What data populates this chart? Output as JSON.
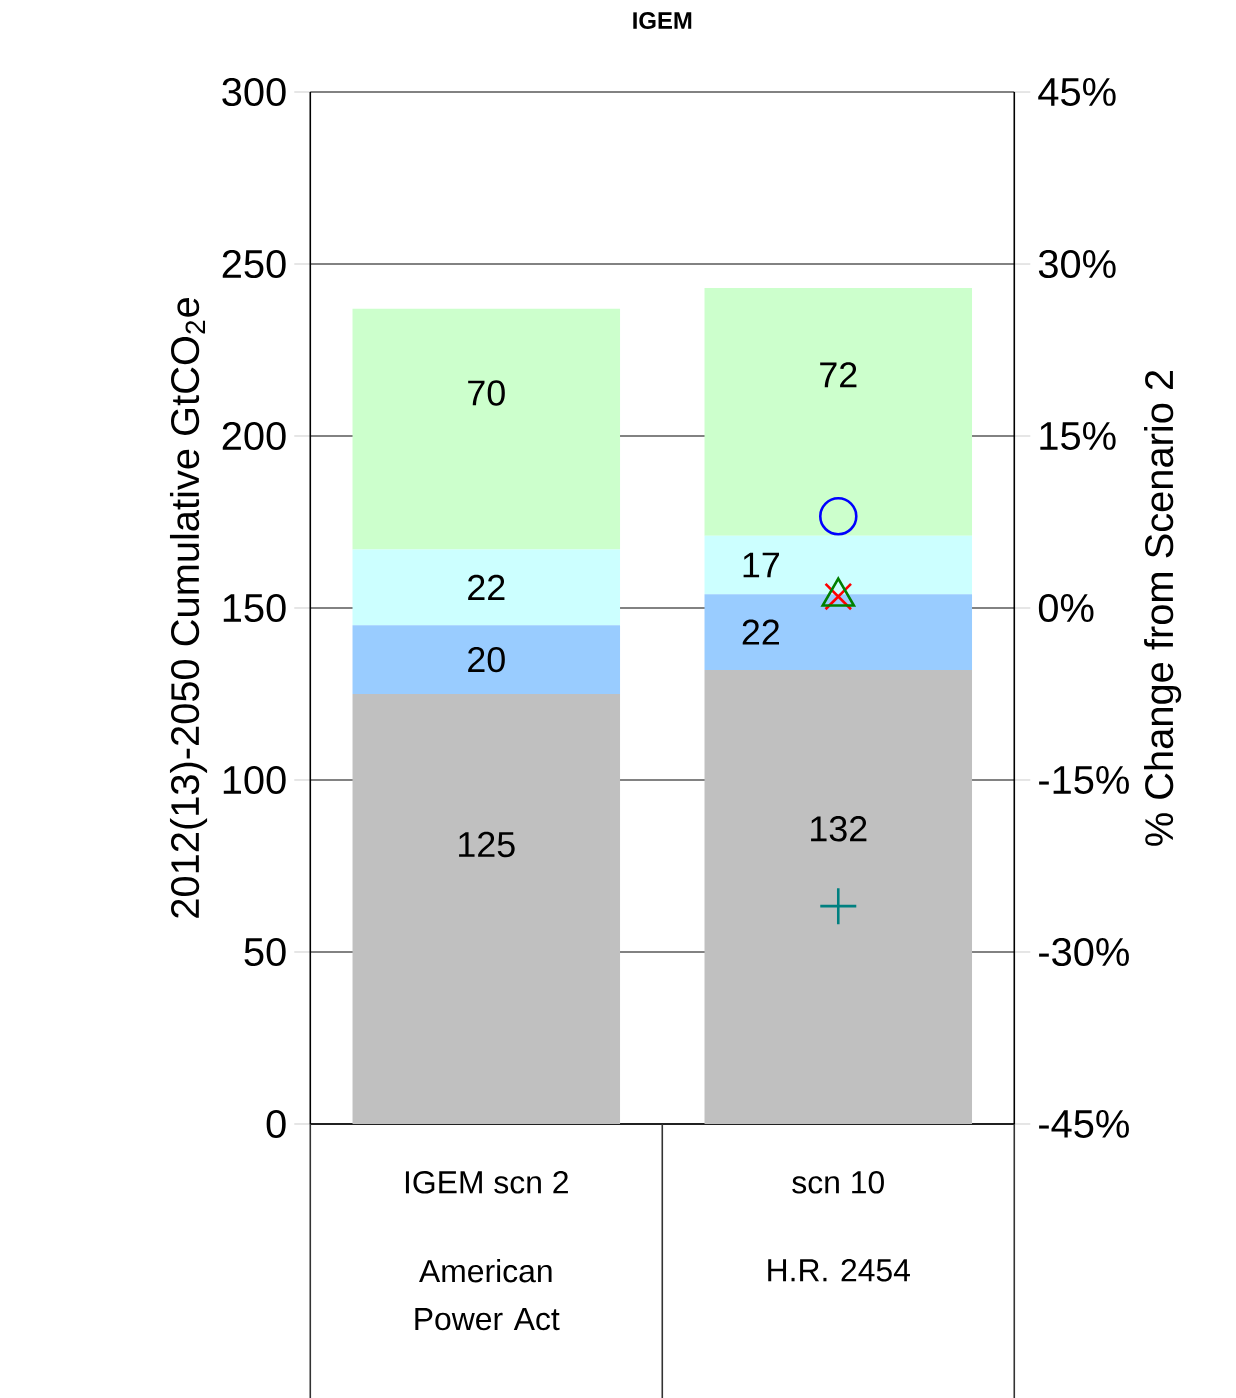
{
  "chart_data": {
    "type": "bar",
    "title": "IGEM",
    "ylabel": "2012(13)-2050 Cumulative GtCO$_{2}$e",
    "y2label": "% Change from Scenario 2",
    "categories": [
      "IGEM scn 2",
      "scn 10"
    ],
    "annotations": [
      "American Power Act",
      "H.R. 2454"
    ],
    "stacked": true,
    "data_labels": true,
    "grid": "y",
    "ylim": [
      0,
      300
    ],
    "yticks": [
      0,
      50,
      100,
      150,
      200,
      250,
      300
    ],
    "y2lim": [
      -45,
      45
    ],
    "y2ticks": [
      {
        "value": -45,
        "label": "-45%"
      },
      {
        "value": -30,
        "label": "-30%"
      },
      {
        "value": -15,
        "label": "-15%"
      },
      {
        "value": 0,
        "label": "0%"
      },
      {
        "value": 15,
        "label": "15%"
      },
      {
        "value": 30,
        "label": "30%"
      },
      {
        "value": 45,
        "label": "45%"
      }
    ],
    "series": [
      {
        "color": "#c0c0c0",
        "values": [
          125,
          132
        ]
      },
      {
        "color": "#99ccff",
        "values": [
          20,
          22
        ]
      },
      {
        "color": "#ccffff",
        "values": [
          22,
          17
        ]
      },
      {
        "color": "#ccffcc",
        "values": [
          70,
          72
        ]
      },
      {
        "type": "scatter",
        "axis": "y2",
        "x": [
          "scn 10"
        ],
        "values": [
          8
        ],
        "value_labels": [
          null
        ],
        "color": "#0000ff",
        "marker": "circle"
      },
      {
        "type": "scatter",
        "axis": "y2",
        "x": [
          "scn 10"
        ],
        "values": [
          1
        ],
        "value_labels": [
          null
        ],
        "color": "#ff0000",
        "marker": "cross"
      },
      {
        "type": "scatter",
        "axis": "y2",
        "x": [
          "scn 10"
        ],
        "values": [
          1
        ],
        "value_labels": [
          null
        ],
        "color": "#008000",
        "marker": "triangle"
      },
      {
        "type": "scatter",
        "axis": "y2",
        "x": [
          "scn 10"
        ],
        "values": [
          -26
        ],
        "value_labels": [
          null
        ],
        "color": "#008080",
        "marker": "plus"
      }
    ]
  }
}
